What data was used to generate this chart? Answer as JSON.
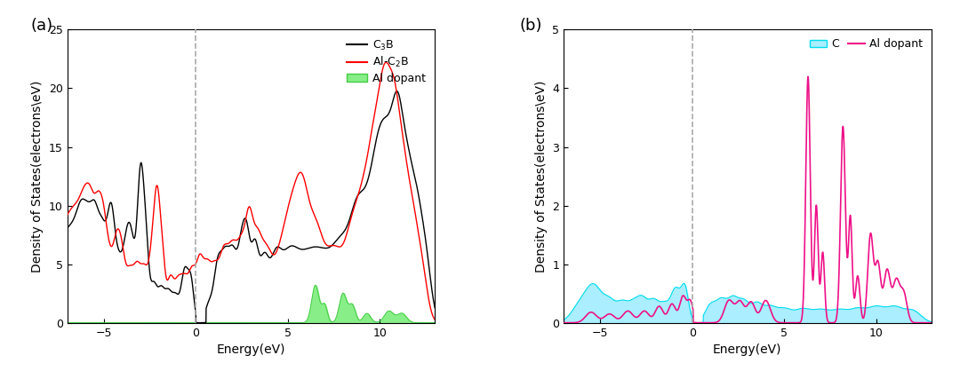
{
  "panel_a": {
    "title": "(a)",
    "xlabel": "Energy(eV)",
    "ylabel": "Density of States(electrons\\eV)",
    "xlim": [
      -7,
      13
    ],
    "ylim": [
      0,
      25
    ],
    "yticks": [
      0,
      5,
      10,
      15,
      20,
      25
    ],
    "xticks": [
      -5,
      0,
      5,
      10
    ],
    "fermi_line_x": 0,
    "c3b_color": "#000000",
    "alc2b_color": "#ff0000",
    "al_dopant_color": "#44cc44",
    "al_dopant_fill": "#88ee88"
  },
  "panel_b": {
    "title": "(b)",
    "xlabel": "Energy(eV)",
    "ylabel": "Density of States(electrons\\eV)",
    "xlim": [
      -7,
      13
    ],
    "ylim": [
      0,
      5
    ],
    "yticks": [
      0,
      1,
      2,
      3,
      4,
      5
    ],
    "xticks": [
      -5,
      0,
      5,
      10
    ],
    "fermi_line_x": 0,
    "c_color": "#00ddee",
    "c_fill": "#aaeeff",
    "al_dopant_color": "#ee1188",
    "legend_c_label": "C",
    "legend_al_label": "Al dopant"
  },
  "figure_bg": "#ffffff",
  "label_fontsize": 10,
  "tick_fontsize": 9,
  "legend_fontsize": 9,
  "panel_label_fontsize": 13
}
